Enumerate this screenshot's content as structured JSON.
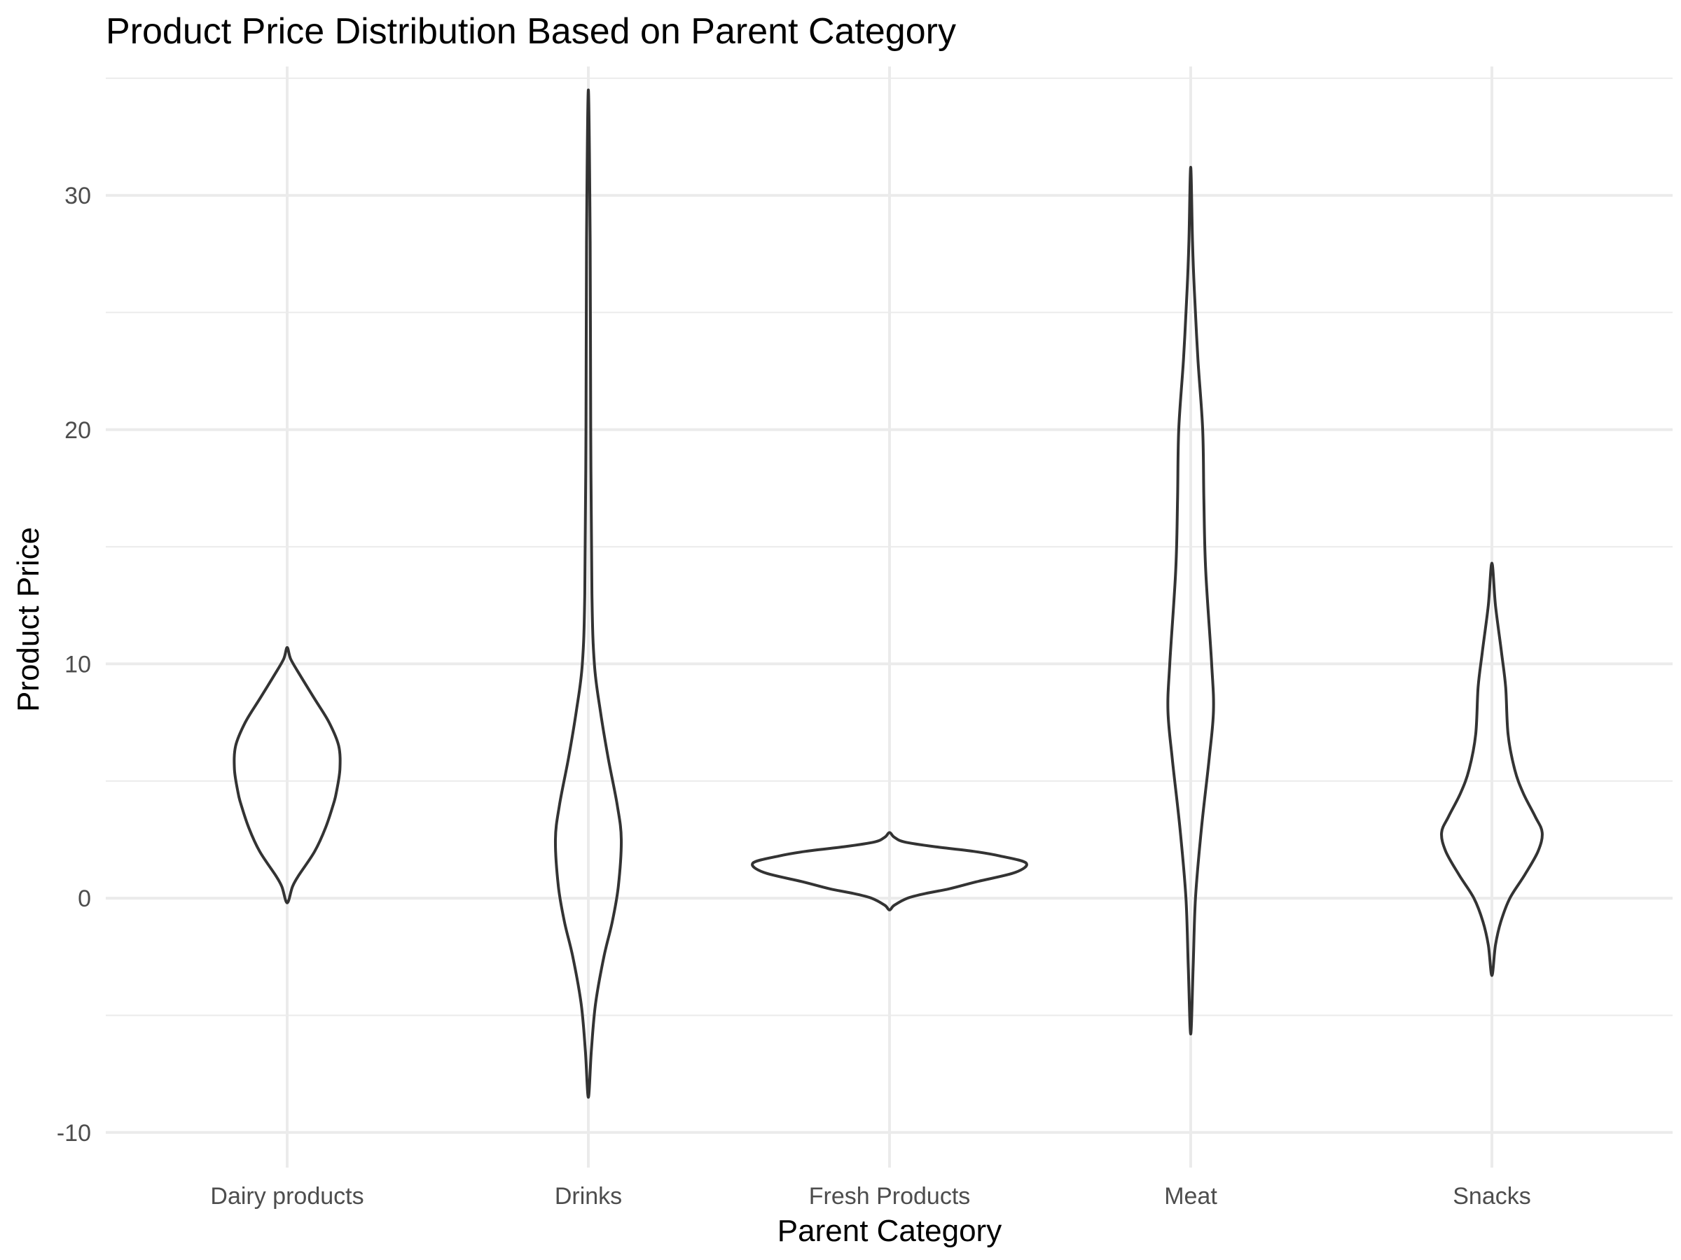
{
  "chart_data": {
    "type": "violin",
    "title": "Product Price Distribution Based on Parent Category",
    "xlabel": "Parent Category",
    "ylabel": "Product Price",
    "categories": [
      "Dairy products",
      "Drinks",
      "Fresh Products",
      "Meat",
      "Snacks"
    ],
    "ylim": [
      -10,
      35
    ],
    "y_ticks": [
      -10,
      0,
      10,
      20,
      30
    ],
    "y_minor_ticks": [
      -5,
      5,
      15,
      25,
      35
    ],
    "grid": true,
    "legend": "none",
    "series": [
      {
        "category": "Dairy products",
        "profile": [
          [
            -0.2,
            0.0
          ],
          [
            0.5,
            0.09
          ],
          [
            1.0,
            0.2
          ],
          [
            2.0,
            0.46
          ],
          [
            3.0,
            0.64
          ],
          [
            4.0,
            0.77
          ],
          [
            4.5,
            0.82
          ],
          [
            5.5,
            0.88
          ],
          [
            6.5,
            0.86
          ],
          [
            7.5,
            0.7
          ],
          [
            8.5,
            0.46
          ],
          [
            9.5,
            0.22
          ],
          [
            10.2,
            0.06
          ],
          [
            10.7,
            0.0
          ]
        ]
      },
      {
        "category": "Drinks",
        "profile": [
          [
            -8.5,
            0.0
          ],
          [
            -6.5,
            0.05
          ],
          [
            -4.5,
            0.12
          ],
          [
            -2.5,
            0.26
          ],
          [
            -1.0,
            0.4
          ],
          [
            0.5,
            0.5
          ],
          [
            2.5,
            0.55
          ],
          [
            4.0,
            0.48
          ],
          [
            6.0,
            0.33
          ],
          [
            8.0,
            0.2
          ],
          [
            10.0,
            0.1
          ],
          [
            13.0,
            0.06
          ],
          [
            20.0,
            0.04
          ],
          [
            28.0,
            0.03
          ],
          [
            34.5,
            0.0
          ]
        ]
      },
      {
        "category": "Fresh Products",
        "profile": [
          [
            -0.5,
            0.0
          ],
          [
            -0.3,
            0.08
          ],
          [
            0.0,
            0.3
          ],
          [
            0.2,
            0.6
          ],
          [
            0.4,
            1.0
          ],
          [
            0.7,
            1.45
          ],
          [
            1.1,
            2.1
          ],
          [
            1.5,
            2.28
          ],
          [
            1.8,
            1.85
          ],
          [
            2.0,
            1.4
          ],
          [
            2.2,
            0.75
          ],
          [
            2.4,
            0.25
          ],
          [
            2.6,
            0.08
          ],
          [
            2.8,
            0.0
          ]
        ]
      },
      {
        "category": "Meat",
        "profile": [
          [
            -5.8,
            0.0
          ],
          [
            -3.0,
            0.04
          ],
          [
            0.0,
            0.08
          ],
          [
            3.0,
            0.18
          ],
          [
            6.0,
            0.31
          ],
          [
            8.0,
            0.38
          ],
          [
            10.0,
            0.35
          ],
          [
            14.0,
            0.25
          ],
          [
            17.0,
            0.22
          ],
          [
            20.0,
            0.2
          ],
          [
            23.0,
            0.12
          ],
          [
            26.0,
            0.06
          ],
          [
            28.0,
            0.03
          ],
          [
            31.2,
            0.0
          ]
        ]
      },
      {
        "category": "Snacks",
        "profile": [
          [
            -3.3,
            0.0
          ],
          [
            -2.0,
            0.06
          ],
          [
            -1.0,
            0.15
          ],
          [
            0.0,
            0.3
          ],
          [
            1.0,
            0.55
          ],
          [
            2.0,
            0.77
          ],
          [
            2.8,
            0.84
          ],
          [
            3.5,
            0.72
          ],
          [
            4.5,
            0.52
          ],
          [
            5.5,
            0.38
          ],
          [
            7.0,
            0.27
          ],
          [
            9.0,
            0.23
          ],
          [
            10.5,
            0.16
          ],
          [
            12.5,
            0.06
          ],
          [
            14.3,
            0.0
          ]
        ]
      }
    ]
  }
}
